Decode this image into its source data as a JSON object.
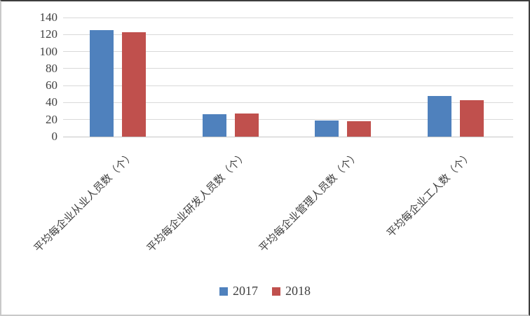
{
  "chart_data": {
    "type": "bar",
    "title": "",
    "categories": [
      "平均每企业从业人员数（个）",
      "平均每企业研发人员数（个）",
      "平均每企业管理人员数（个）",
      "平均每企业工人数（个）"
    ],
    "series": [
      {
        "name": "2017",
        "color": "#4F81BD",
        "values": [
          125,
          26,
          19,
          48
        ]
      },
      {
        "name": "2018",
        "color": "#C0504D",
        "values": [
          123,
          27,
          18,
          43
        ]
      }
    ],
    "ylim": [
      0,
      140
    ],
    "yticks": [
      0,
      20,
      40,
      60,
      80,
      100,
      120,
      140
    ],
    "grid": true,
    "legend_position": "bottom",
    "legend": [
      "2017",
      "2018"
    ]
  },
  "colors": {
    "grid": "#D9D9D9",
    "axis_text": "#3F3F3F",
    "background": "#FFFFFF",
    "series_2017": "#4F81BD",
    "series_2018": "#C0504D"
  }
}
